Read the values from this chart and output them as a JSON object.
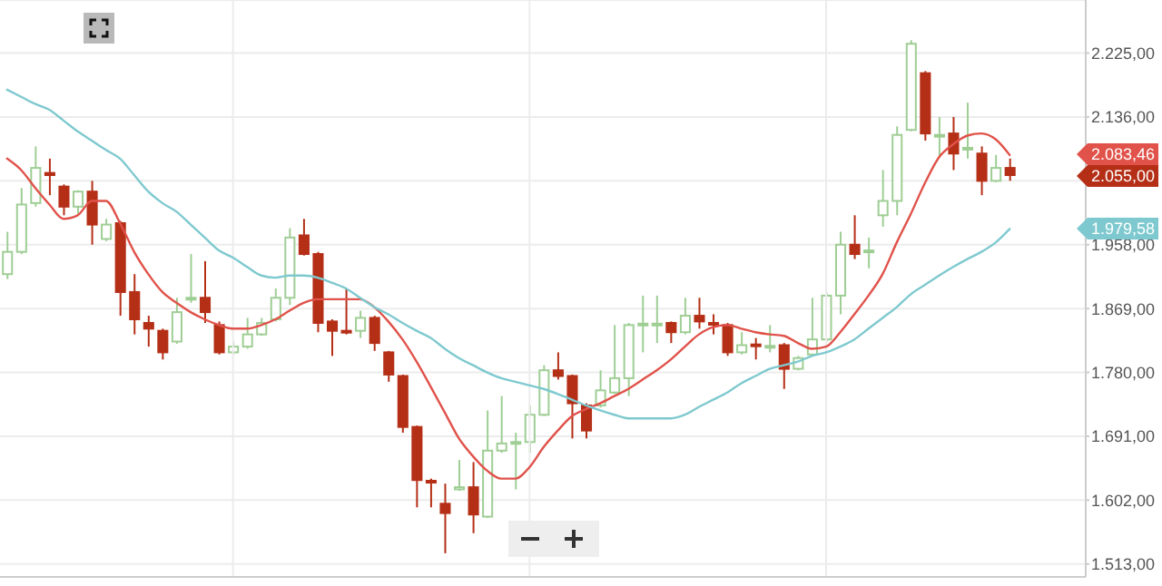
{
  "chart_data": {
    "type": "candlestick",
    "categories": [
      null,
      null,
      null,
      null,
      null,
      null,
      null,
      null,
      null,
      null,
      null,
      null,
      null,
      null,
      null,
      null,
      null,
      null,
      null,
      null,
      null,
      null,
      null,
      null,
      null,
      null,
      null,
      null,
      null,
      null,
      null,
      null,
      null,
      null,
      null,
      null,
      null,
      null,
      null,
      null,
      null,
      null,
      null,
      null,
      null,
      null,
      null,
      null,
      null,
      null,
      null,
      null,
      null,
      null,
      null,
      null,
      null,
      null,
      null,
      null,
      null,
      null,
      null,
      null,
      null,
      null,
      null,
      null,
      null,
      null,
      null,
      null
    ],
    "ohlc": [
      [
        1917,
        1976,
        1910,
        1948
      ],
      [
        1948,
        2037,
        1945,
        2014
      ],
      [
        2016,
        2095,
        2011,
        2065
      ],
      [
        2058,
        2078,
        2027,
        2055
      ],
      [
        2039,
        2042,
        1999,
        2011
      ],
      [
        2011,
        2034,
        2001,
        2032
      ],
      [
        2032,
        2047,
        1958,
        1986
      ],
      [
        1966,
        1994,
        1963,
        1986
      ],
      [
        1988,
        1991,
        1859,
        1892
      ],
      [
        1892,
        1917,
        1833,
        1854
      ],
      [
        1849,
        1859,
        1816,
        1841
      ],
      [
        1838,
        1841,
        1798,
        1808
      ],
      [
        1823,
        1884,
        1820,
        1864
      ],
      [
        1882,
        1945,
        1877,
        1884
      ],
      [
        1884,
        1935,
        1849,
        1864
      ],
      [
        1846,
        1851,
        1805,
        1808
      ],
      [
        1808,
        1823,
        1805,
        1816
      ],
      [
        1816,
        1856,
        1813,
        1833
      ],
      [
        1833,
        1856,
        1831,
        1849
      ],
      [
        1854,
        1897,
        1851,
        1884
      ],
      [
        1884,
        1981,
        1874,
        1968
      ],
      [
        1971,
        1994,
        1943,
        1945
      ],
      [
        1945,
        1948,
        1836,
        1849
      ],
      [
        1851,
        1854,
        1803,
        1838
      ],
      [
        1838,
        1897,
        1833,
        1836
      ],
      [
        1838,
        1866,
        1828,
        1856
      ],
      [
        1856,
        1859,
        1810,
        1821
      ],
      [
        1808,
        1810,
        1767,
        1777
      ],
      [
        1775,
        1777,
        1696,
        1704
      ],
      [
        1704,
        1706,
        1592,
        1630
      ],
      [
        1629,
        1632,
        1592,
        1627
      ],
      [
        1597,
        1625,
        1528,
        1584
      ],
      [
        1617,
        1658,
        1615,
        1620
      ],
      [
        1620,
        1655,
        1556,
        1582
      ],
      [
        1579,
        1727,
        1577,
        1671
      ],
      [
        1671,
        1747,
        1668,
        1681
      ],
      [
        1681,
        1696,
        1617,
        1683
      ],
      [
        1683,
        1734,
        1668,
        1721
      ],
      [
        1721,
        1790,
        1719,
        1783
      ],
      [
        1783,
        1808,
        1770,
        1775
      ],
      [
        1775,
        1777,
        1688,
        1737
      ],
      [
        1734,
        1737,
        1688,
        1699
      ],
      [
        1734,
        1783,
        1731,
        1755
      ],
      [
        1752,
        1846,
        1750,
        1772
      ],
      [
        1772,
        1849,
        1747,
        1846
      ],
      [
        1846,
        1887,
        1808,
        1848
      ],
      [
        1846,
        1887,
        1821,
        1848
      ],
      [
        1849,
        1851,
        1821,
        1836
      ],
      [
        1836,
        1884,
        1833,
        1859
      ],
      [
        1859,
        1884,
        1841,
        1851
      ],
      [
        1849,
        1861,
        1833,
        1847
      ],
      [
        1846,
        1849,
        1803,
        1808
      ],
      [
        1808,
        1836,
        1805,
        1818
      ],
      [
        1819,
        1828,
        1798,
        1817
      ],
      [
        1815,
        1846,
        1808,
        1817
      ],
      [
        1818,
        1821,
        1757,
        1785
      ],
      [
        1785,
        1803,
        1783,
        1800
      ],
      [
        1805,
        1884,
        1803,
        1826
      ],
      [
        1826,
        1892,
        1823,
        1887
      ],
      [
        1887,
        1976,
        1861,
        1958
      ],
      [
        1958,
        1999,
        1938,
        1945
      ],
      [
        1948,
        1968,
        1925,
        1950
      ],
      [
        1999,
        2062,
        1983,
        2019
      ],
      [
        2019,
        2123,
        1999,
        2111
      ],
      [
        2118,
        2243,
        2116,
        2238
      ],
      [
        2197,
        2200,
        2103,
        2113
      ],
      [
        2109,
        2136,
        2080,
        2111
      ],
      [
        2113,
        2136,
        2062,
        2085
      ],
      [
        2091,
        2156,
        2078,
        2093
      ],
      [
        2085,
        2095,
        2027,
        2047
      ],
      [
        2047,
        2083,
        2045,
        2065
      ],
      [
        2065,
        2078,
        2047,
        2055
      ]
    ],
    "colors": [
      "#9fce95",
      "#9fce95",
      "#9fce95",
      "#b52f17",
      "#b52f17",
      "#9fce95",
      "#b52f17",
      "#9fce95",
      "#b52f17",
      "#b52f17",
      "#b52f17",
      "#b52f17",
      "#9fce95",
      "#9fce95",
      "#b52f17",
      "#b52f17",
      "#9fce95",
      "#9fce95",
      "#9fce95",
      "#9fce95",
      "#9fce95",
      "#b52f17",
      "#b52f17",
      "#b52f17",
      "#b52f17",
      "#9fce95",
      "#b52f17",
      "#b52f17",
      "#b52f17",
      "#b52f17",
      "#b52f17",
      "#b52f17",
      "#9fce95",
      "#b52f17",
      "#9fce95",
      "#9fce95",
      "#9fce95",
      "#9fce95",
      "#9fce95",
      "#b52f17",
      "#b52f17",
      "#b52f17",
      "#9fce95",
      "#9fce95",
      "#9fce95",
      "#9fce95",
      "#9fce95",
      "#b52f17",
      "#9fce95",
      "#b52f17",
      "#b52f17",
      "#b52f17",
      "#9fce95",
      "#b52f17",
      "#9fce95",
      "#b52f17",
      "#9fce95",
      "#9fce95",
      "#9fce95",
      "#9fce95",
      "#b52f17",
      "#9fce95",
      "#9fce95",
      "#9fce95",
      "#9fce95",
      "#b52f17",
      "#9fce95",
      "#b52f17",
      "#9fce95",
      "#b52f17",
      "#9fce95",
      "#b52f17"
    ],
    "series": [
      {
        "type": "line",
        "color": "#e0524a",
        "values": [
          2078,
          2062,
          2037,
          2014,
          1994,
          1999,
          2019,
          2019,
          1988,
          1948,
          1917,
          1892,
          1877,
          1864,
          1854,
          1846,
          1841,
          1841,
          1846,
          1854,
          1866,
          1877,
          1882,
          1882,
          1882,
          1882,
          1871,
          1851,
          1826,
          1795,
          1760,
          1724,
          1688,
          1663,
          1643,
          1632,
          1632,
          1648,
          1676,
          1699,
          1719,
          1729,
          1737,
          1747,
          1757,
          1770,
          1783,
          1798,
          1816,
          1833,
          1843,
          1846,
          1841,
          1836,
          1833,
          1831,
          1821,
          1813,
          1816,
          1836,
          1861,
          1887,
          1917,
          1961,
          2001,
          2044,
          2080,
          2098,
          2110,
          2113,
          2105,
          2083
        ]
      },
      {
        "type": "line",
        "color": "#7ec9cf",
        "values": [
          2174,
          2164,
          2154,
          2146,
          2131,
          2116,
          2103,
          2090,
          2078,
          2055,
          2032,
          2016,
          2004,
          1986,
          1968,
          1950,
          1940,
          1927,
          1915,
          1912,
          1915,
          1915,
          1912,
          1905,
          1897,
          1884,
          1871,
          1861,
          1849,
          1838,
          1828,
          1813,
          1800,
          1790,
          1780,
          1772,
          1767,
          1762,
          1757,
          1750,
          1742,
          1734,
          1727,
          1721,
          1716,
          1716,
          1716,
          1716,
          1721,
          1732,
          1742,
          1752,
          1765,
          1775,
          1785,
          1790,
          1795,
          1803,
          1808,
          1816,
          1826,
          1841,
          1856,
          1871,
          1889,
          1902,
          1915,
          1927,
          1938,
          1948,
          1961,
          1980
        ]
      }
    ],
    "ylim": [
      1495,
      2299
    ],
    "yticks": [
      {
        "value": 1513,
        "label": "1.513,00"
      },
      {
        "value": 1602,
        "label": "1.602,00"
      },
      {
        "value": 1691,
        "label": "1.691,00"
      },
      {
        "value": 1780,
        "label": "1.780,00"
      },
      {
        "value": 1869,
        "label": "1.869,00"
      },
      {
        "value": 1958,
        "label": "1.958,00"
      },
      {
        "value": 2047,
        "label": null
      },
      {
        "value": 2136,
        "label": "2.136,00"
      },
      {
        "value": 2225,
        "label": "2.225,00"
      }
    ],
    "grid": true,
    "marker": "none",
    "annotations": [
      "2.083,46",
      "2.055,00",
      "1.979,58"
    ]
  }
}
